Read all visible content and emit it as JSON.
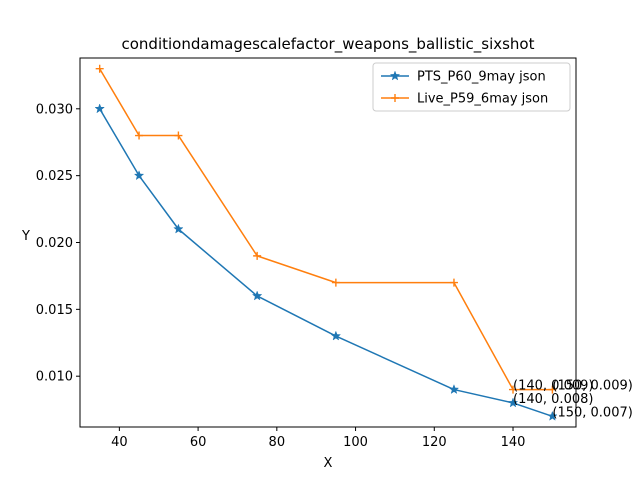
{
  "chart_data": {
    "type": "line",
    "title": "conditiondamagescalefactor_weapons_ballistic_sixshot",
    "xlabel": "X",
    "ylabel": "Y",
    "xlim": [
      30,
      156
    ],
    "ylim": [
      0.0062,
      0.0338
    ],
    "xticks": [
      40,
      60,
      80,
      100,
      120,
      140
    ],
    "yticks": [
      0.01,
      0.015,
      0.02,
      0.025,
      0.03
    ],
    "grid": false,
    "legend_position": "top-right",
    "series": [
      {
        "name": "PTS_P60_9may json",
        "color": "#1f77b4",
        "marker": "star",
        "x": [
          35,
          45,
          55,
          75,
          95,
          125,
          140,
          150
        ],
        "y": [
          0.03,
          0.025,
          0.021,
          0.016,
          0.013,
          0.009,
          0.008,
          0.007
        ]
      },
      {
        "name": "Live_P59_6may json",
        "color": "#ff7f0e",
        "marker": "plus",
        "x": [
          35,
          45,
          55,
          75,
          95,
          125,
          140,
          150
        ],
        "y": [
          0.033,
          0.028,
          0.028,
          0.019,
          0.017,
          0.017,
          0.009,
          0.009
        ]
      }
    ],
    "annotations": [
      {
        "text": "(140, 0.009)",
        "x": 140,
        "y": 0.009
      },
      {
        "text": "(150, 0.009)",
        "x": 150,
        "y": 0.009
      },
      {
        "text": "(140, 0.008)",
        "x": 140,
        "y": 0.008
      },
      {
        "text": "(150, 0.007)",
        "x": 150,
        "y": 0.007
      }
    ]
  }
}
